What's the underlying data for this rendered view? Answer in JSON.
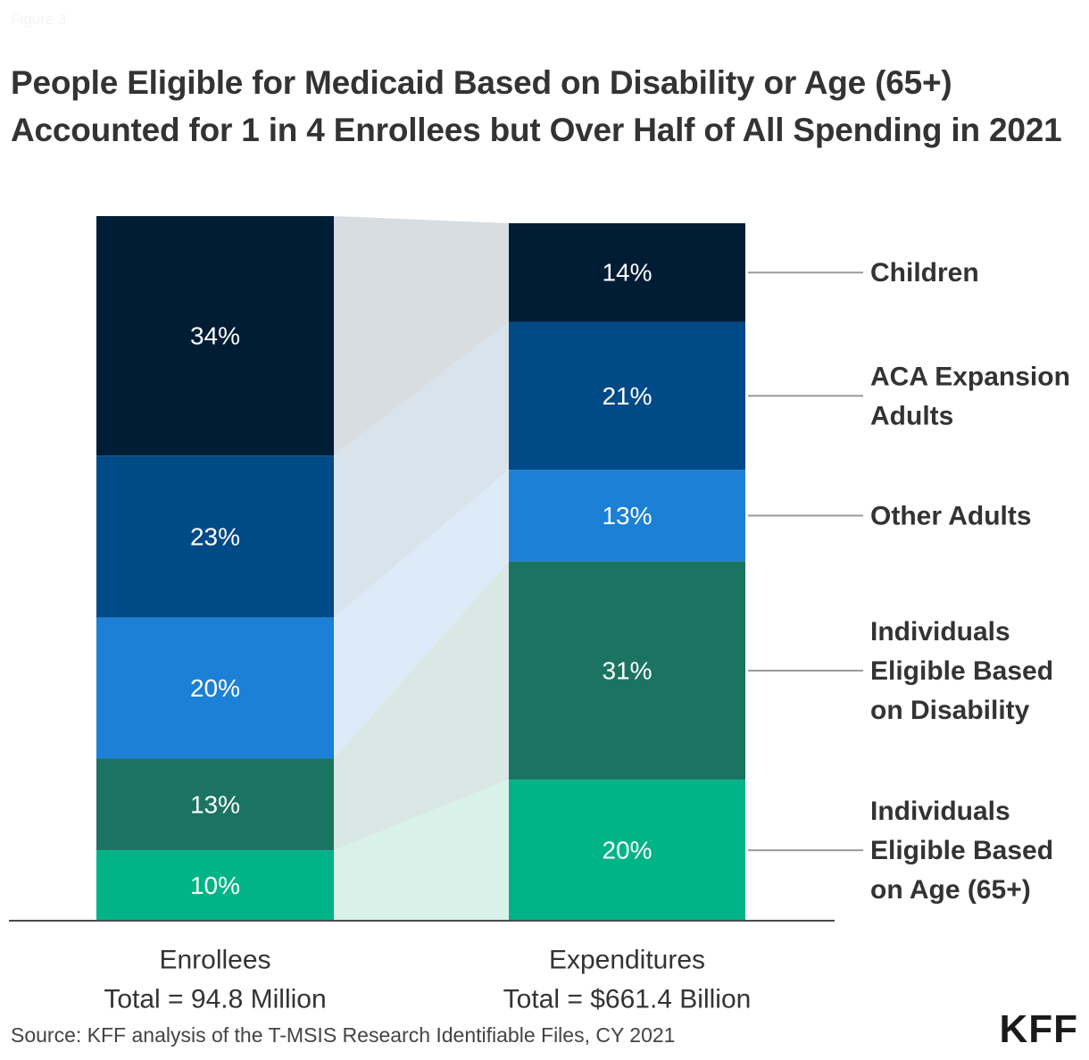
{
  "figure_label": "Figure 3",
  "chart_data": {
    "type": "bar",
    "subtype": "stacked-100-with-connectors",
    "title": "People Eligible for Medicaid Based on Disability or Age (65+) Accounted for 1 in 4 Enrollees but Over Half of All Spending in 2021",
    "categories": [
      "Enrollees",
      "Expenditures"
    ],
    "category_sublabels": [
      "Total = 94.8 Million",
      "Total = $661.4 Billion"
    ],
    "series": [
      {
        "name": "Children",
        "values": [
          34,
          14
        ],
        "labels": [
          "34%",
          "14%"
        ],
        "color": "#001d36",
        "connector_color": "#d8dde2"
      },
      {
        "name": "ACA Expansion Adults",
        "values": [
          23,
          21
        ],
        "labels": [
          "23%",
          "21%"
        ],
        "color": "#004a87",
        "connector_color": "#d8e3ec"
      },
      {
        "name": "Other Adults",
        "values": [
          20,
          13
        ],
        "labels": [
          "20%",
          "13%"
        ],
        "color": "#1c80d6",
        "connector_color": "#dcebf7"
      },
      {
        "name": "Individuals Eligible Based on Disability",
        "values": [
          13,
          31
        ],
        "labels": [
          "13%",
          "31%"
        ],
        "color": "#1b7462",
        "connector_color": "#d9e8e4"
      },
      {
        "name": "Individuals Eligible Based on Age (65+)",
        "values": [
          10,
          20
        ],
        "labels": [
          "10%",
          "20%"
        ],
        "color": "#00b487",
        "connector_color": "#d8f2ea"
      }
    ],
    "legend_lines": [
      [
        "Children"
      ],
      [
        "ACA Expansion",
        "Adults"
      ],
      [
        "Other Adults"
      ],
      [
        "Individuals",
        "Eligible Based",
        "on Disability"
      ],
      [
        "Individuals",
        "Eligible Based",
        "on Age (65+)"
      ]
    ],
    "legend_position": "right",
    "xlabel": "",
    "ylabel": "",
    "ylim": [
      0,
      100
    ],
    "grid": false
  },
  "source": "Source: KFF analysis of the T-MSIS Research Identifiable Files, CY 2021",
  "logo": "KFF"
}
